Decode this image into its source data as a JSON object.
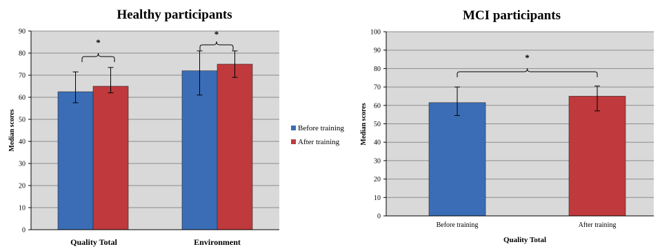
{
  "colors": {
    "before": "#3a6db5",
    "after": "#c0393c",
    "plot_bg": "#d9d9d9",
    "grid": "#8c8c8c"
  },
  "chart_data": [
    {
      "type": "bar",
      "title": "Healthy participants",
      "ylabel": "Median scores",
      "xlabel": "",
      "ylim": [
        0,
        90
      ],
      "yticks": [
        "0",
        "10",
        "20",
        "30",
        "40",
        "50",
        "60",
        "70",
        "80",
        "90"
      ],
      "categories": [
        "Quality Total",
        "Environment"
      ],
      "series": [
        {
          "name": "Before training",
          "values": [
            62.5,
            72
          ],
          "err_low": [
            57.5,
            61
          ],
          "err_high": [
            71.5,
            81
          ]
        },
        {
          "name": "After training",
          "values": [
            65,
            75
          ],
          "err_low": [
            62,
            69
          ],
          "err_high": [
            73.5,
            81
          ]
        }
      ],
      "annotations": [
        "*",
        "*"
      ],
      "legend": "right",
      "grid": true
    },
    {
      "type": "bar",
      "title": "MCI participants",
      "ylabel": "Median scores",
      "xlabel": "Quality Total",
      "ylim": [
        0,
        100
      ],
      "yticks": [
        "0",
        "10",
        "20",
        "30",
        "40",
        "50",
        "60",
        "70",
        "80",
        "90",
        "100"
      ],
      "categories": [
        "Before training",
        "After training"
      ],
      "values": [
        61.5,
        65
      ],
      "err_low": [
        54.5,
        57
      ],
      "err_high": [
        70,
        70.5
      ],
      "annotations": [
        "*"
      ],
      "grid": true
    }
  ]
}
